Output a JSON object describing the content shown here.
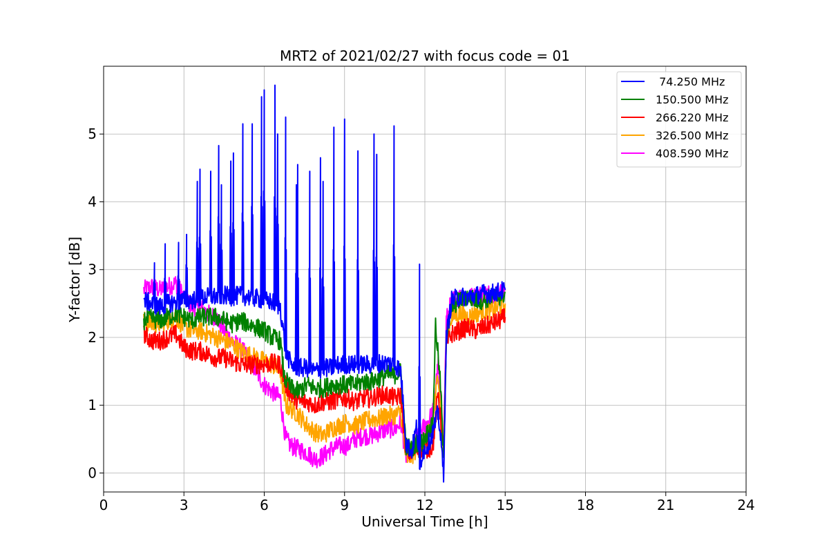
{
  "chart_data": {
    "type": "line",
    "title": "MRT2 of 2021/02/27 with focus code = 01",
    "xlabel": "Universal Time [h]",
    "ylabel": "Y-factor [dB]",
    "xlim": [
      0,
      24
    ],
    "ylim": [
      -0.28,
      6.0
    ],
    "xticks": [
      0,
      3,
      6,
      9,
      12,
      15,
      18,
      21,
      24
    ],
    "yticks": [
      0,
      1,
      2,
      3,
      4,
      5
    ],
    "grid": true,
    "legend_position": "top-right",
    "series": [
      {
        "name": " 74.250 MHz",
        "color": "#0000ff",
        "x": [
          1.5,
          1.8,
          2.1,
          2.4,
          2.7,
          3.0,
          3.3,
          3.6,
          3.9,
          4.2,
          4.5,
          4.8,
          5.1,
          5.4,
          5.7,
          6.0,
          6.3,
          6.6,
          6.8,
          7.0,
          7.3,
          7.6,
          7.9,
          8.2,
          8.5,
          8.8,
          9.1,
          9.4,
          9.7,
          10.0,
          10.3,
          10.6,
          10.9,
          11.1,
          11.3,
          11.5,
          11.7,
          11.8,
          11.9,
          12.1,
          12.3,
          12.5,
          12.7,
          12.8,
          13.0,
          13.3,
          13.6,
          13.9,
          14.2,
          14.5,
          14.8,
          15.0
        ],
        "values": [
          2.55,
          2.5,
          2.45,
          2.5,
          2.52,
          2.55,
          2.55,
          2.58,
          2.6,
          2.6,
          2.62,
          2.6,
          2.62,
          2.6,
          2.58,
          2.55,
          2.52,
          2.45,
          1.8,
          1.6,
          1.55,
          1.55,
          1.5,
          1.55,
          1.55,
          1.6,
          1.6,
          1.6,
          1.6,
          1.6,
          1.62,
          1.62,
          1.6,
          1.5,
          0.45,
          0.3,
          0.7,
          0.0,
          0.3,
          0.4,
          0.6,
          0.9,
          0.0,
          2.0,
          2.55,
          2.6,
          2.6,
          2.62,
          2.65,
          2.65,
          2.68,
          2.7
        ],
        "peaks": [
          {
            "x": 1.9,
            "y": 3.1
          },
          {
            "x": 2.3,
            "y": 3.38
          },
          {
            "x": 2.8,
            "y": 3.4
          },
          {
            "x": 3.1,
            "y": 3.52
          },
          {
            "x": 3.5,
            "y": 4.3
          },
          {
            "x": 3.6,
            "y": 4.48
          },
          {
            "x": 4.0,
            "y": 4.45
          },
          {
            "x": 4.3,
            "y": 4.83
          },
          {
            "x": 4.4,
            "y": 4.25
          },
          {
            "x": 4.75,
            "y": 4.6
          },
          {
            "x": 4.85,
            "y": 4.72
          },
          {
            "x": 5.2,
            "y": 5.15
          },
          {
            "x": 5.55,
            "y": 5.15
          },
          {
            "x": 5.9,
            "y": 5.55
          },
          {
            "x": 6.0,
            "y": 5.65
          },
          {
            "x": 6.4,
            "y": 5.72
          },
          {
            "x": 6.5,
            "y": 5.0
          },
          {
            "x": 6.8,
            "y": 5.25
          },
          {
            "x": 7.2,
            "y": 4.25
          },
          {
            "x": 7.25,
            "y": 4.55
          },
          {
            "x": 7.7,
            "y": 4.45
          },
          {
            "x": 8.1,
            "y": 4.65
          },
          {
            "x": 8.2,
            "y": 4.3
          },
          {
            "x": 8.6,
            "y": 5.1
          },
          {
            "x": 9.0,
            "y": 5.22
          },
          {
            "x": 9.5,
            "y": 4.75
          },
          {
            "x": 10.1,
            "y": 5.0
          },
          {
            "x": 10.2,
            "y": 4.7
          },
          {
            "x": 10.85,
            "y": 5.12
          },
          {
            "x": 11.8,
            "y": 3.08
          }
        ]
      },
      {
        "name": "150.500 MHz",
        "color": "#008000",
        "x": [
          1.5,
          1.8,
          2.1,
          2.4,
          2.7,
          3.0,
          3.3,
          3.6,
          3.9,
          4.2,
          4.5,
          4.8,
          5.1,
          5.4,
          5.7,
          6.0,
          6.3,
          6.6,
          6.75,
          7.0,
          7.3,
          7.6,
          7.9,
          8.2,
          8.5,
          8.8,
          9.1,
          9.4,
          9.7,
          10.0,
          10.3,
          10.6,
          10.9,
          11.1,
          11.3,
          11.5,
          11.7,
          11.9,
          12.1,
          12.3,
          12.4,
          12.6,
          12.7,
          12.8,
          13.0,
          13.3,
          13.6,
          13.9,
          14.2,
          14.5,
          14.8,
          15.0
        ],
        "values": [
          2.25,
          2.28,
          2.25,
          2.3,
          2.35,
          2.3,
          2.25,
          2.3,
          2.3,
          2.3,
          2.25,
          2.2,
          2.25,
          2.2,
          2.15,
          2.1,
          2.0,
          1.95,
          1.4,
          1.25,
          1.2,
          1.3,
          1.25,
          1.25,
          1.3,
          1.3,
          1.3,
          1.3,
          1.35,
          1.35,
          1.4,
          1.45,
          1.45,
          1.5,
          0.4,
          0.35,
          0.45,
          0.45,
          0.6,
          0.7,
          2.2,
          1.2,
          0.15,
          2.0,
          2.45,
          2.55,
          2.6,
          2.55,
          2.55,
          2.6,
          2.6,
          2.65
        ]
      },
      {
        "name": "266.220 MHz",
        "color": "#ff0000",
        "x": [
          1.5,
          1.8,
          2.1,
          2.4,
          2.7,
          3.0,
          3.3,
          3.6,
          3.9,
          4.2,
          4.5,
          4.8,
          5.1,
          5.4,
          5.7,
          6.0,
          6.3,
          6.6,
          6.8,
          7.0,
          7.3,
          7.6,
          7.9,
          8.2,
          8.5,
          8.8,
          9.1,
          9.4,
          9.7,
          10.0,
          10.3,
          10.6,
          10.9,
          11.1,
          11.3,
          11.5,
          11.7,
          11.9,
          12.1,
          12.3,
          12.5,
          12.7,
          12.8,
          13.0,
          13.3,
          13.6,
          13.9,
          14.2,
          14.5,
          14.8,
          15.0
        ],
        "values": [
          2.05,
          1.95,
          1.95,
          2.0,
          2.05,
          1.85,
          1.8,
          1.8,
          1.75,
          1.7,
          1.7,
          1.65,
          1.6,
          1.6,
          1.6,
          1.6,
          1.62,
          1.6,
          1.3,
          1.15,
          1.05,
          1.05,
          1.0,
          1.05,
          1.05,
          1.1,
          1.1,
          1.05,
          1.1,
          1.1,
          1.15,
          1.15,
          1.1,
          1.15,
          0.3,
          0.3,
          0.35,
          0.35,
          0.35,
          0.4,
          1.2,
          0.3,
          1.9,
          2.05,
          2.1,
          2.15,
          2.1,
          2.15,
          2.2,
          2.25,
          2.3
        ]
      },
      {
        "name": "326.500 MHz",
        "color": "#ffa500",
        "x": [
          1.5,
          1.8,
          2.1,
          2.4,
          2.7,
          3.0,
          3.3,
          3.6,
          3.9,
          4.2,
          4.5,
          4.8,
          5.1,
          5.4,
          5.7,
          6.0,
          6.3,
          6.6,
          6.8,
          7.0,
          7.3,
          7.6,
          7.9,
          8.2,
          8.5,
          8.8,
          9.1,
          9.4,
          9.7,
          10.0,
          10.3,
          10.6,
          10.9,
          11.1,
          11.3,
          11.5,
          11.7,
          11.9,
          12.1,
          12.3,
          12.5,
          12.7,
          12.8,
          13.0,
          13.3,
          13.6,
          13.9,
          14.2,
          14.5,
          14.8,
          15.0
        ],
        "values": [
          2.25,
          2.2,
          2.2,
          2.25,
          2.3,
          2.15,
          2.1,
          2.1,
          2.05,
          2.0,
          1.95,
          1.9,
          1.8,
          1.75,
          1.7,
          1.65,
          1.6,
          1.5,
          1.0,
          0.95,
          0.85,
          0.7,
          0.6,
          0.55,
          0.65,
          0.7,
          0.75,
          0.7,
          0.75,
          0.8,
          0.8,
          0.85,
          0.85,
          0.9,
          0.2,
          0.25,
          0.35,
          0.4,
          0.55,
          0.75,
          1.5,
          0.3,
          2.0,
          2.3,
          2.35,
          2.3,
          2.35,
          2.4,
          2.4,
          2.45,
          2.5
        ]
      },
      {
        "name": "408.590 MHz",
        "color": "#ff00ff",
        "x": [
          1.5,
          1.8,
          2.1,
          2.4,
          2.7,
          3.0,
          3.3,
          3.6,
          3.9,
          4.2,
          4.5,
          4.8,
          5.1,
          5.4,
          5.7,
          6.0,
          6.3,
          6.6,
          6.8,
          7.0,
          7.3,
          7.6,
          7.9,
          8.2,
          8.5,
          8.8,
          9.1,
          9.4,
          9.7,
          10.0,
          10.3,
          10.6,
          10.9,
          11.1,
          11.3,
          11.5,
          11.7,
          11.9,
          12.1,
          12.3,
          12.5,
          12.7,
          12.8,
          13.0,
          13.3,
          13.6,
          13.9,
          14.2,
          14.5,
          14.8,
          15.0
        ],
        "values": [
          2.7,
          2.75,
          2.7,
          2.75,
          2.8,
          2.6,
          2.45,
          2.45,
          2.35,
          2.3,
          2.1,
          1.95,
          1.85,
          1.7,
          1.5,
          1.3,
          1.2,
          1.1,
          0.5,
          0.4,
          0.35,
          0.3,
          0.2,
          0.25,
          0.35,
          0.4,
          0.4,
          0.5,
          0.55,
          0.55,
          0.6,
          0.65,
          0.65,
          0.75,
          0.25,
          0.35,
          0.5,
          0.65,
          0.75,
          0.9,
          1.6,
          0.35,
          2.25,
          2.55,
          2.6,
          2.6,
          2.6,
          2.65,
          2.65,
          2.65,
          2.7
        ]
      }
    ]
  }
}
